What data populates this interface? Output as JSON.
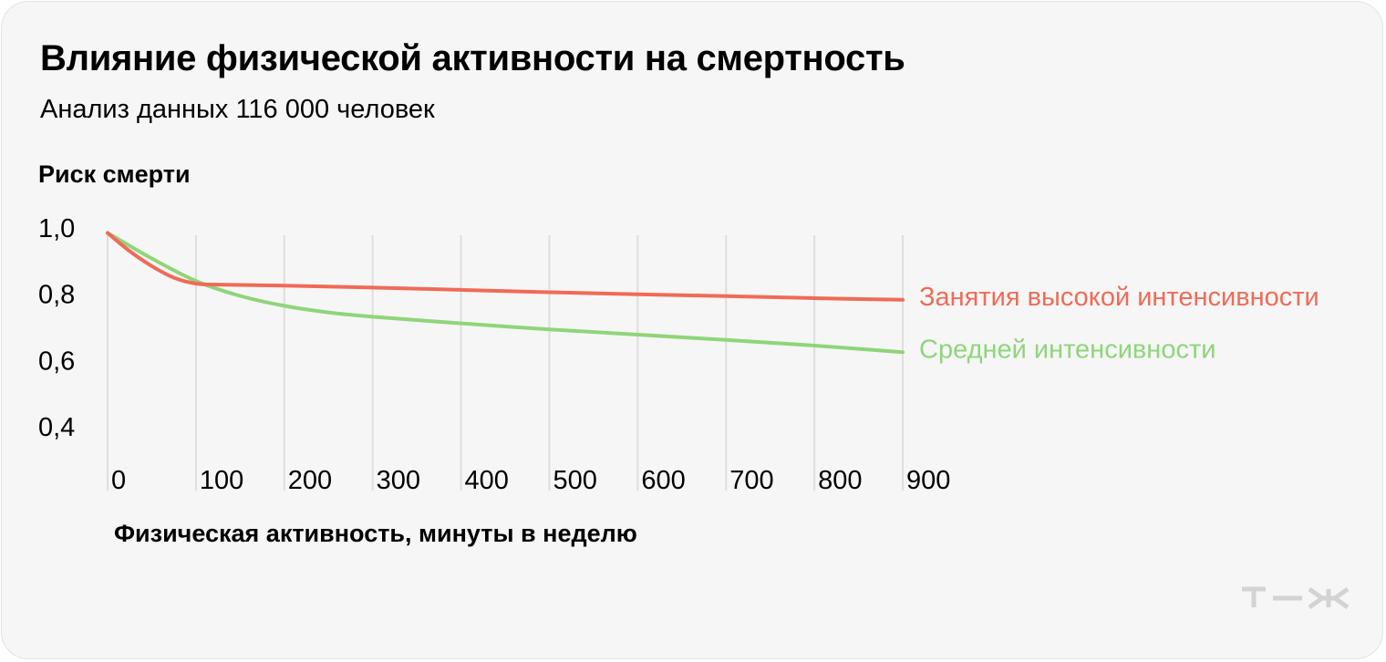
{
  "title": "Влияние физической активности на смертность",
  "subtitle": "Анализ данных 116 000 человек",
  "logo_alt": "т—ж",
  "colors": {
    "background": "#f6f6f6",
    "high_intensity": "#ef6b57",
    "medium_intensity": "#8fd57a",
    "grid": "#dedede"
  },
  "chart_data": {
    "type": "line",
    "ylabel": "Риск смерти",
    "xlabel": "Физическая активность, минуты в неделю",
    "ylim": [
      0.4,
      1.0
    ],
    "xlim": [
      0,
      900
    ],
    "yticks": [
      {
        "value": 1.0,
        "label": "1,0"
      },
      {
        "value": 0.8,
        "label": "0,8"
      },
      {
        "value": 0.6,
        "label": "0,6"
      },
      {
        "value": 0.4,
        "label": "0,4"
      }
    ],
    "xticks": [
      {
        "value": 0,
        "label": "0"
      },
      {
        "value": 100,
        "label": "100"
      },
      {
        "value": 200,
        "label": "200"
      },
      {
        "value": 300,
        "label": "300"
      },
      {
        "value": 400,
        "label": "400"
      },
      {
        "value": 500,
        "label": "500"
      },
      {
        "value": 600,
        "label": "600"
      },
      {
        "value": 700,
        "label": "700"
      },
      {
        "value": 800,
        "label": "800"
      },
      {
        "value": 900,
        "label": "900"
      }
    ],
    "grid": "vertical",
    "series": [
      {
        "name": "Занятия высокой интенсивности",
        "color": "#ef6b57",
        "points": [
          [
            0,
            0.985
          ],
          [
            25,
            0.93
          ],
          [
            50,
            0.885
          ],
          [
            75,
            0.85
          ],
          [
            100,
            0.832
          ],
          [
            125,
            0.829
          ],
          [
            200,
            0.826
          ],
          [
            300,
            0.82
          ],
          [
            400,
            0.813
          ],
          [
            500,
            0.806
          ],
          [
            600,
            0.8
          ],
          [
            700,
            0.794
          ],
          [
            800,
            0.788
          ],
          [
            900,
            0.783
          ]
        ]
      },
      {
        "name": "Средней интенсивности",
        "color": "#8fd57a",
        "points": [
          [
            0,
            0.985
          ],
          [
            50,
            0.908
          ],
          [
            100,
            0.84
          ],
          [
            150,
            0.795
          ],
          [
            200,
            0.765
          ],
          [
            250,
            0.745
          ],
          [
            300,
            0.732
          ],
          [
            400,
            0.712
          ],
          [
            500,
            0.694
          ],
          [
            600,
            0.678
          ],
          [
            700,
            0.662
          ],
          [
            800,
            0.645
          ],
          [
            900,
            0.625
          ]
        ]
      }
    ]
  }
}
